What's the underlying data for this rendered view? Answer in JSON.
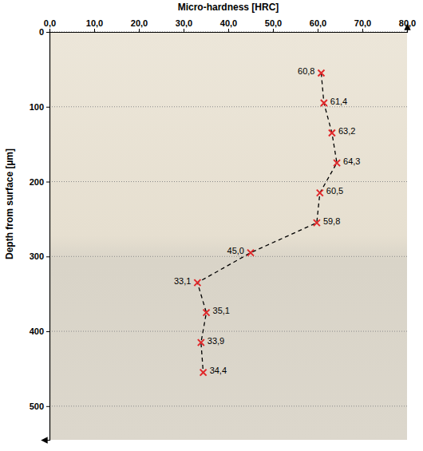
{
  "chart_data": {
    "type": "line",
    "orientation": "horizontal",
    "xlabel": "Depth from surface [µm]",
    "ylabel": "Micro-hardness [HRC]",
    "x": [
      55,
      95,
      135,
      175,
      215,
      255,
      295,
      335,
      375,
      415,
      455
    ],
    "values": [
      60.8,
      61.4,
      63.2,
      64.3,
      60.5,
      59.8,
      45.0,
      33.1,
      35.1,
      33.9,
      34.4
    ],
    "value_labels": [
      "60,8",
      "61,4",
      "63,2",
      "64,3",
      "60,5",
      "59,8",
      "45,0",
      "33,1",
      "35,1",
      "33,9",
      "34,4"
    ],
    "data_labels": true,
    "xlim": [
      0,
      545
    ],
    "xticks": [
      0,
      100,
      200,
      300,
      400,
      500
    ],
    "ylim": [
      0,
      80
    ],
    "yticks": [
      {
        "value": 0,
        "label": "0,0"
      },
      {
        "value": 10,
        "label": "10,0"
      },
      {
        "value": 20,
        "label": "20,0"
      },
      {
        "value": 30,
        "label": "30,0"
      },
      {
        "value": 40,
        "label": "40,0"
      },
      {
        "value": 50,
        "label": "50,0"
      },
      {
        "value": 60,
        "label": "60,0"
      },
      {
        "value": 70,
        "label": "70,0"
      },
      {
        "value": 80,
        "label": "80,0"
      }
    ],
    "grid": true,
    "color": "#e0282a",
    "marker": "x",
    "line_style": "dashed"
  }
}
